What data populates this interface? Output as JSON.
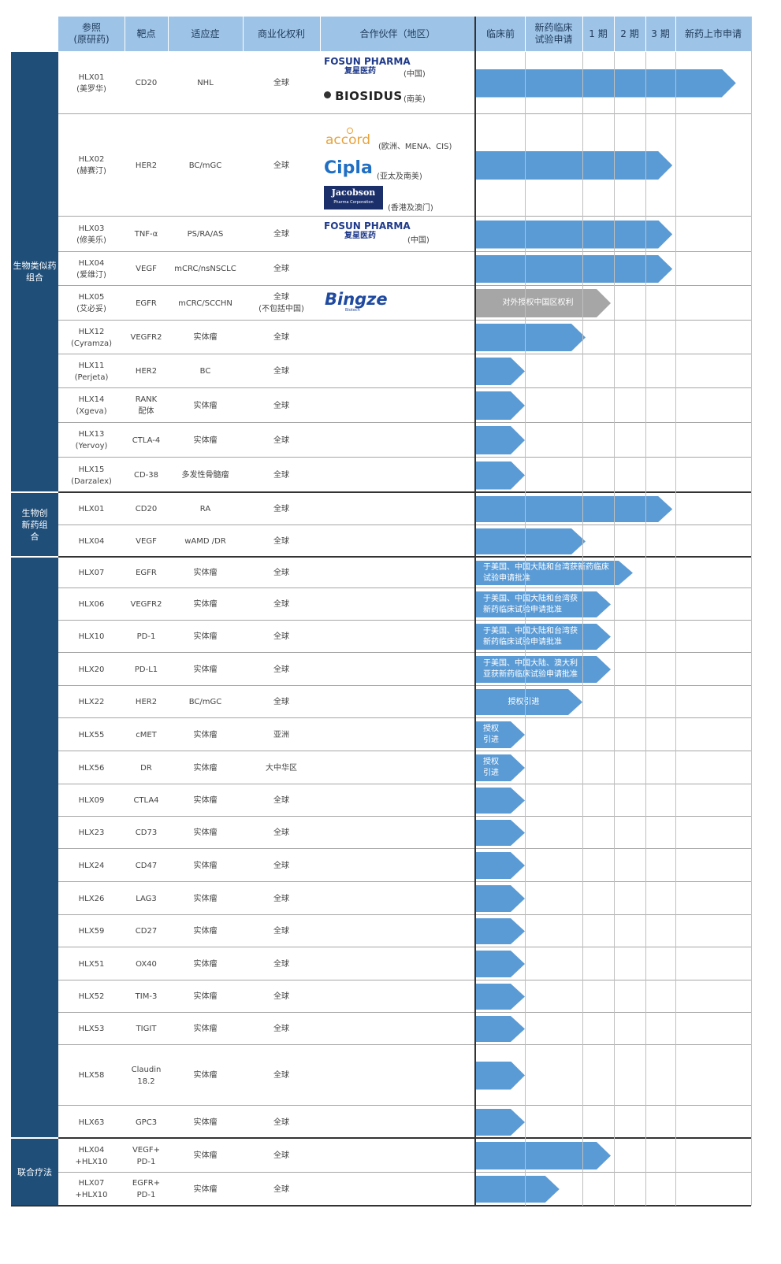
{
  "colors": {
    "header_bg": "#9dc3e6",
    "group_bg": "#1f4e79",
    "bar": "#5b9bd5",
    "bar_grey": "#a6a6a6"
  },
  "header": {
    "ref": "参照\n(原研药)",
    "target": "靶点",
    "indication": "适应症",
    "rights": "商业化权利",
    "partner": "合作伙伴（地区）",
    "preclinical": "临床前",
    "ind": "新药临床\n试验申请",
    "p1": "1 期",
    "p2": "2 期",
    "p3": "3 期",
    "nda": "新药上市申请"
  },
  "groups": [
    {
      "label": "生物类似药\n组合"
    },
    {
      "label": "生物创\n新药组\n合"
    },
    {
      "label": ""
    },
    {
      "label": "联合疗法"
    }
  ],
  "rows": [
    {
      "ref": "HLX01\n(美罗华)",
      "target": "CD20",
      "indication": "NHL",
      "rights": "全球",
      "stage": 5.8,
      "bar_label": ""
    },
    {
      "ref": "HLX02\n(赫赛汀)",
      "target": "HER2",
      "indication": "BC/mGC",
      "rights": "全球",
      "stage": 4.9,
      "bar_label": ""
    },
    {
      "ref": "HLX03\n(修美乐)",
      "target": "TNF-α",
      "indication": "PS/RA/AS",
      "rights": "全球",
      "stage": 4.9,
      "bar_label": ""
    },
    {
      "ref": "HLX04\n(爱维汀)",
      "target": "VEGF",
      "indication": "mCRC/nsNSCLC",
      "rights": "全球",
      "stage": 4.9,
      "bar_label": ""
    },
    {
      "ref": "HLX05\n(艾必妥)",
      "target": "EGFR",
      "indication": "mCRC/SCCHN",
      "rights": "全球\n(不包括中国)",
      "stage": 2.9,
      "bar_label": "对外授权中国区权利"
    },
    {
      "ref": "HLX12\n(Cyramza)",
      "target": "VEGFR2",
      "indication": "实体瘤",
      "rights": "全球",
      "stage": 2.1,
      "bar_label": ""
    },
    {
      "ref": "HLX11\n(Perjeta)",
      "target": "HER2",
      "indication": "BC",
      "rights": "全球",
      "stage": 1.0,
      "bar_label": ""
    },
    {
      "ref": "HLX14\n(Xgeva)",
      "target": "RANK\n配体",
      "indication": "实体瘤",
      "rights": "全球",
      "stage": 1.0,
      "bar_label": ""
    },
    {
      "ref": "HLX13\n(Yervoy)",
      "target": "CTLA-4",
      "indication": "实体瘤",
      "rights": "全球",
      "stage": 1.0,
      "bar_label": ""
    },
    {
      "ref": "HLX15\n(Darzalex)",
      "target": "CD-38",
      "indication": "多发性骨髓瘤",
      "rights": "全球",
      "stage": 1.0,
      "bar_label": ""
    },
    {
      "ref": "HLX01",
      "target": "CD20",
      "indication": "RA",
      "rights": "全球",
      "stage": 4.9,
      "bar_label": ""
    },
    {
      "ref": "HLX04",
      "target": "VEGF",
      "indication": "wAMD /DR",
      "rights": "全球",
      "stage": 2.1,
      "bar_label": ""
    },
    {
      "ref": "HLX07",
      "target": "EGFR",
      "indication": "实体瘤",
      "rights": "全球",
      "stage": 3.6,
      "bar_label": "于美国、中国大陆和台湾获新药临床\n试验申请批准"
    },
    {
      "ref": "HLX06",
      "target": "VEGFR2",
      "indication": "实体瘤",
      "rights": "全球",
      "stage": 2.9,
      "bar_label": "于美国、中国大陆和台湾获\n新药临床试验申请批准"
    },
    {
      "ref": "HLX10",
      "target": "PD-1",
      "indication": "实体瘤",
      "rights": "全球",
      "stage": 2.9,
      "bar_label": "于美国、中国大陆和台湾获\n新药临床试验申请批准"
    },
    {
      "ref": "HLX20",
      "target": "PD-L1",
      "indication": "实体瘤",
      "rights": "全球",
      "stage": 2.9,
      "bar_label": "于美国、中国大陆、澳大利\n亚获新药临床试验申请批准"
    },
    {
      "ref": "HLX22",
      "target": "HER2",
      "indication": "BC/mGC",
      "rights": "全球",
      "stage": 2.0,
      "bar_label": "授权引进"
    },
    {
      "ref": "HLX55",
      "target": "cMET",
      "indication": "实体瘤",
      "rights": "亚洲",
      "stage": 1.0,
      "bar_label": "授权\n引进"
    },
    {
      "ref": "HLX56",
      "target": "DR",
      "indication": "实体瘤",
      "rights": "大中华区",
      "stage": 1.0,
      "bar_label": "授权\n引进"
    },
    {
      "ref": "HLX09",
      "target": "CTLA4",
      "indication": "实体瘤",
      "rights": "全球",
      "stage": 1.0,
      "bar_label": ""
    },
    {
      "ref": "HLX23",
      "target": "CD73",
      "indication": "实体瘤",
      "rights": "全球",
      "stage": 1.0,
      "bar_label": ""
    },
    {
      "ref": "HLX24",
      "target": "CD47",
      "indication": "实体瘤",
      "rights": "全球",
      "stage": 1.0,
      "bar_label": ""
    },
    {
      "ref": "HLX26",
      "target": "LAG3",
      "indication": "实体瘤",
      "rights": "全球",
      "stage": 1.0,
      "bar_label": ""
    },
    {
      "ref": "HLX59",
      "target": "CD27",
      "indication": "实体瘤",
      "rights": "全球",
      "stage": 1.0,
      "bar_label": ""
    },
    {
      "ref": "HLX51",
      "target": "OX40",
      "indication": "实体瘤",
      "rights": "全球",
      "stage": 1.0,
      "bar_label": ""
    },
    {
      "ref": "HLX52",
      "target": "TIM-3",
      "indication": "实体瘤",
      "rights": "全球",
      "stage": 1.0,
      "bar_label": ""
    },
    {
      "ref": "HLX53",
      "target": "TIGIT",
      "indication": "实体瘤",
      "rights": "全球",
      "stage": 1.0,
      "bar_label": ""
    },
    {
      "ref": "HLX58",
      "target": "Claudin\n18.2",
      "indication": "实体瘤",
      "rights": "全球",
      "stage": 1.0,
      "bar_label": ""
    },
    {
      "ref": "HLX63",
      "target": "GPC3",
      "indication": "实体瘤",
      "rights": "全球",
      "stage": 1.0,
      "bar_label": ""
    },
    {
      "ref": "HLX04\n+HLX10",
      "target": "VEGF+\nPD-1",
      "indication": "实体瘤",
      "rights": "全球",
      "stage": 2.9,
      "bar_label": ""
    },
    {
      "ref": "HLX07\n+HLX10",
      "target": "EGFR+\nPD-1",
      "indication": "实体瘤",
      "rights": "全球",
      "stage": 1.6,
      "bar_label": ""
    }
  ],
  "partners": [
    {
      "name": "FOSUN PHARMA",
      "name_cn": "复星医药",
      "region": "(中国)"
    },
    {
      "name": "BIOSIDUS",
      "region": "(南美)"
    },
    {
      "name": "accord",
      "region": "(欧洲、MENA、CIS)"
    },
    {
      "name": "Cipla",
      "region": "(亚太及南美)"
    },
    {
      "name": "Jacobson",
      "subname": "Pharma Corporation",
      "region": "(香港及澳门)"
    },
    {
      "name": "FOSUN PHARMA",
      "name_cn": "复星医药",
      "region": "(中国)"
    },
    {
      "name": "Bingze",
      "subname": "Biotech"
    }
  ]
}
